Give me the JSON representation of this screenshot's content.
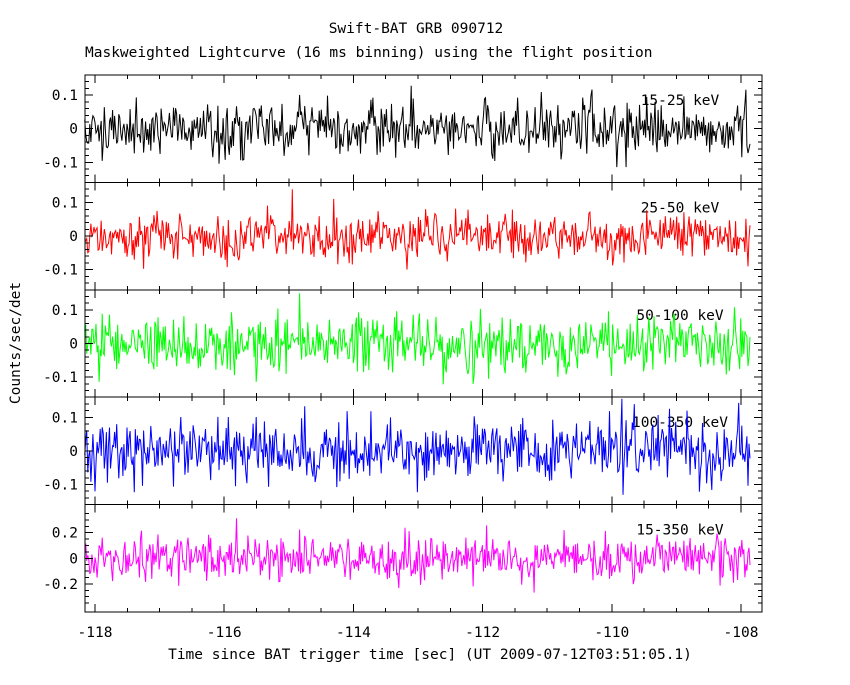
{
  "title": "Swift-BAT GRB 090712",
  "subtitle": "Maskweighted Lightcurve (16 ms binning) using the flight position",
  "axes": {
    "xlabel": "Time since BAT trigger time [sec] (UT 2009-07-12T03:51:05.1)",
    "ylabel": "Counts/sec/det"
  },
  "chart_data": {
    "type": "line",
    "title": "Swift-BAT GRB 090712",
    "subtitle": "Maskweighted Lightcurve (16 ms binning) using the flight position",
    "xlabel": "Time since BAT trigger time [sec] (UT 2009-07-12T03:51:05.1)",
    "ylabel": "Counts/sec/det",
    "grid": false,
    "legend_position": "inline-per-panel",
    "x_range": [
      -118.16,
      -107.67
    ],
    "data_x_range": [
      -118.16,
      -107.86
    ],
    "bin_seconds": 0.016,
    "x_major_ticks": [
      -118,
      -116,
      -114,
      -112,
      -110,
      -108
    ],
    "x_tick_labels": [
      "-118",
      "-116",
      "-114",
      "-112",
      "-110",
      "-108"
    ],
    "x_minor_step": 0.5,
    "panels": [
      {
        "band": "15-25 keV",
        "color": "#000000",
        "ylim": [
          -0.16,
          0.16
        ],
        "y_major_ticks": [
          0.1,
          0,
          -0.1
        ],
        "y_tick_labels": [
          "0.1",
          "0",
          "-0.1"
        ],
        "y_minor_step": 0.02,
        "noise_mean": 0,
        "noise_sigma": 0.04,
        "seed": 1337
      },
      {
        "band": "25-50 keV",
        "color": "#ff0000",
        "ylim": [
          -0.16,
          0.16
        ],
        "y_major_ticks": [
          0.1,
          0,
          -0.1
        ],
        "y_tick_labels": [
          "0.1",
          "0",
          "-0.1"
        ],
        "y_minor_step": 0.02,
        "noise_mean": 0,
        "noise_sigma": 0.037,
        "seed": 4242
      },
      {
        "band": "50-100 keV",
        "color": "#00ff00",
        "ylim": [
          -0.16,
          0.16
        ],
        "y_major_ticks": [
          0.1,
          0,
          -0.1
        ],
        "y_tick_labels": [
          "0.1",
          "0",
          "-0.1"
        ],
        "y_minor_step": 0.02,
        "noise_mean": 0,
        "noise_sigma": 0.043,
        "seed": 777
      },
      {
        "band": "100-350 keV",
        "color": "#0000ff",
        "ylim": [
          -0.16,
          0.16
        ],
        "y_major_ticks": [
          0.1,
          0,
          -0.1
        ],
        "y_tick_labels": [
          "0.1",
          "0",
          "-0.1"
        ],
        "y_minor_step": 0.02,
        "noise_mean": 0,
        "noise_sigma": 0.045,
        "seed": 9901
      },
      {
        "band": "15-350 keV",
        "color": "#ff00ff",
        "ylim": [
          -0.42,
          0.42
        ],
        "y_major_ticks": [
          0.2,
          0,
          -0.2
        ],
        "y_tick_labels": [
          "0.2",
          "0",
          "-0.2"
        ],
        "y_minor_step": 0.05,
        "noise_mean": 0,
        "noise_sigma": 0.09,
        "seed": 20240
      }
    ]
  }
}
